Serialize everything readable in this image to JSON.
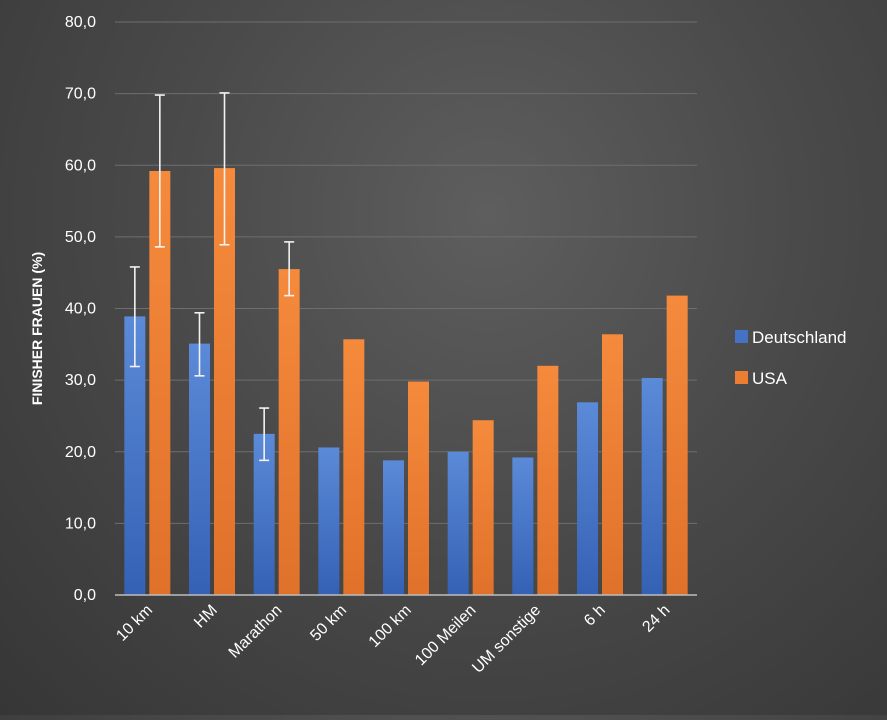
{
  "chart_data": {
    "type": "bar",
    "title": "",
    "xlabel": "",
    "ylabel": "FINISHER FRAUEN (%)",
    "ylim": [
      0,
      80
    ],
    "ytick_step": 10,
    "ytick_labels": [
      "0,0",
      "10,0",
      "20,0",
      "30,0",
      "40,0",
      "50,0",
      "60,0",
      "70,0",
      "80,0"
    ],
    "grid": true,
    "legend_position": "right",
    "categories": [
      "10 km",
      "HM",
      "Marathon",
      "50 km",
      "100 km",
      "100 Meilen",
      "UM sonstige",
      "6 h",
      "24 h"
    ],
    "series": [
      {
        "name": "Deutschland",
        "color": "#4472C4",
        "values": [
          38.9,
          35.1,
          22.5,
          20.6,
          18.8,
          20.0,
          19.2,
          26.9,
          30.3
        ],
        "error_low": [
          31.9,
          30.6,
          18.8,
          null,
          null,
          null,
          null,
          null,
          null
        ],
        "error_high": [
          45.8,
          39.4,
          26.1,
          null,
          null,
          null,
          null,
          null,
          null
        ]
      },
      {
        "name": "USA",
        "color": "#ED7D31",
        "values": [
          59.2,
          59.6,
          45.5,
          35.7,
          29.8,
          24.4,
          32.0,
          36.4,
          41.8
        ],
        "error_low": [
          48.6,
          48.9,
          41.8,
          null,
          null,
          null,
          null,
          null,
          null
        ],
        "error_high": [
          69.8,
          70.1,
          49.3,
          null,
          null,
          null,
          null,
          null,
          null
        ]
      }
    ]
  }
}
